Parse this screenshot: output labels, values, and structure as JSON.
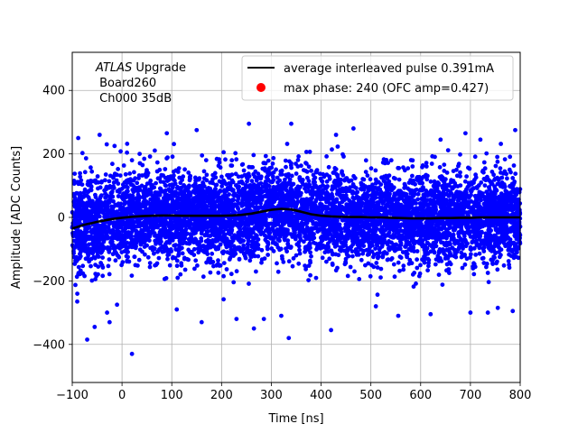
{
  "chart_data": {
    "type": "scatter",
    "title": "",
    "xlabel": "Time [ns]",
    "ylabel": "Amplitude [ADC Counts]",
    "xlim": [
      -100,
      800
    ],
    "ylim": [
      -520,
      520
    ],
    "xticks": [
      -100,
      0,
      100,
      200,
      300,
      400,
      500,
      600,
      700,
      800
    ],
    "yticks": [
      -400,
      -200,
      0,
      200,
      400
    ],
    "grid": true,
    "legend_position": "top-right",
    "annotation": {
      "italic": "ATLAS",
      "rest": " Upgrade",
      "line2": " Board260",
      "line3": " Ch000 35dB"
    },
    "series": [
      {
        "name": "average interleaved pulse 0.391mA",
        "kind": "line",
        "color": "#000000",
        "x": [
          -100,
          -90,
          -80,
          -70,
          -60,
          -50,
          -40,
          -30,
          -20,
          -10,
          0,
          20,
          40,
          60,
          80,
          100,
          120,
          140,
          160,
          180,
          200,
          220,
          240,
          260,
          280,
          300,
          320,
          340,
          360,
          380,
          400,
          420,
          440,
          460,
          480,
          500,
          520,
          540,
          560,
          580,
          600,
          620,
          640,
          660,
          680,
          700,
          720,
          740,
          760,
          780,
          800
        ],
        "y": [
          -35,
          -30,
          -25,
          -21,
          -18,
          -14,
          -11,
          -8,
          -5,
          -3,
          -1,
          2,
          4,
          5,
          6,
          6,
          5,
          5,
          5,
          5,
          5,
          6,
          8,
          12,
          18,
          24,
          27,
          25,
          18,
          10,
          5,
          3,
          2,
          1,
          1,
          0,
          0,
          -1,
          -2,
          -3,
          -3,
          -3,
          -2,
          -2,
          -1,
          -1,
          0,
          0,
          0,
          0,
          0
        ]
      },
      {
        "name": "max phase: 240 (OFC amp=0.427)",
        "kind": "marker",
        "color": "#ff0000"
      },
      {
        "name": "",
        "kind": "scatter",
        "color": "#0000ff",
        "center_x": [
          -100,
          -90,
          -80,
          -70,
          -60,
          -50,
          -40,
          -30,
          -20,
          -10,
          0,
          20,
          40,
          60,
          80,
          100,
          120,
          140,
          160,
          180,
          200,
          220,
          240,
          260,
          280,
          300,
          320,
          340,
          360,
          380,
          400,
          420,
          440,
          460,
          480,
          500,
          520,
          540,
          560,
          580,
          600,
          620,
          640,
          660,
          680,
          700,
          720,
          740,
          760,
          780,
          800
        ],
        "center_y": [
          -35,
          -30,
          -25,
          -21,
          -18,
          -14,
          -11,
          -8,
          -5,
          -3,
          -1,
          2,
          4,
          5,
          6,
          6,
          5,
          5,
          5,
          5,
          5,
          6,
          8,
          12,
          18,
          24,
          27,
          25,
          18,
          10,
          5,
          3,
          2,
          1,
          1,
          0,
          0,
          -1,
          -2,
          -3,
          -3,
          -3,
          -2,
          -2,
          -1,
          -1,
          0,
          0,
          0,
          0,
          0
        ],
        "sigma": 70,
        "outliers": [
          [
            -88,
            250
          ],
          [
            -45,
            260
          ],
          [
            -15,
            225
          ],
          [
            20,
            180
          ],
          [
            90,
            265
          ],
          [
            150,
            275
          ],
          [
            255,
            295
          ],
          [
            340,
            295
          ],
          [
            430,
            260
          ],
          [
            465,
            280
          ],
          [
            640,
            245
          ],
          [
            690,
            265
          ],
          [
            720,
            245
          ],
          [
            790,
            275
          ],
          [
            -90,
            -265
          ],
          [
            -70,
            -385
          ],
          [
            -55,
            -345
          ],
          [
            -30,
            -300
          ],
          [
            -25,
            -330
          ],
          [
            -10,
            -275
          ],
          [
            20,
            -430
          ],
          [
            110,
            -290
          ],
          [
            160,
            -330
          ],
          [
            230,
            -320
          ],
          [
            265,
            -350
          ],
          [
            285,
            -320
          ],
          [
            320,
            -310
          ],
          [
            335,
            -380
          ],
          [
            420,
            -355
          ],
          [
            510,
            -280
          ],
          [
            555,
            -310
          ],
          [
            620,
            -305
          ],
          [
            700,
            -300
          ],
          [
            735,
            -300
          ],
          [
            755,
            -285
          ],
          [
            785,
            -295
          ]
        ]
      }
    ]
  }
}
